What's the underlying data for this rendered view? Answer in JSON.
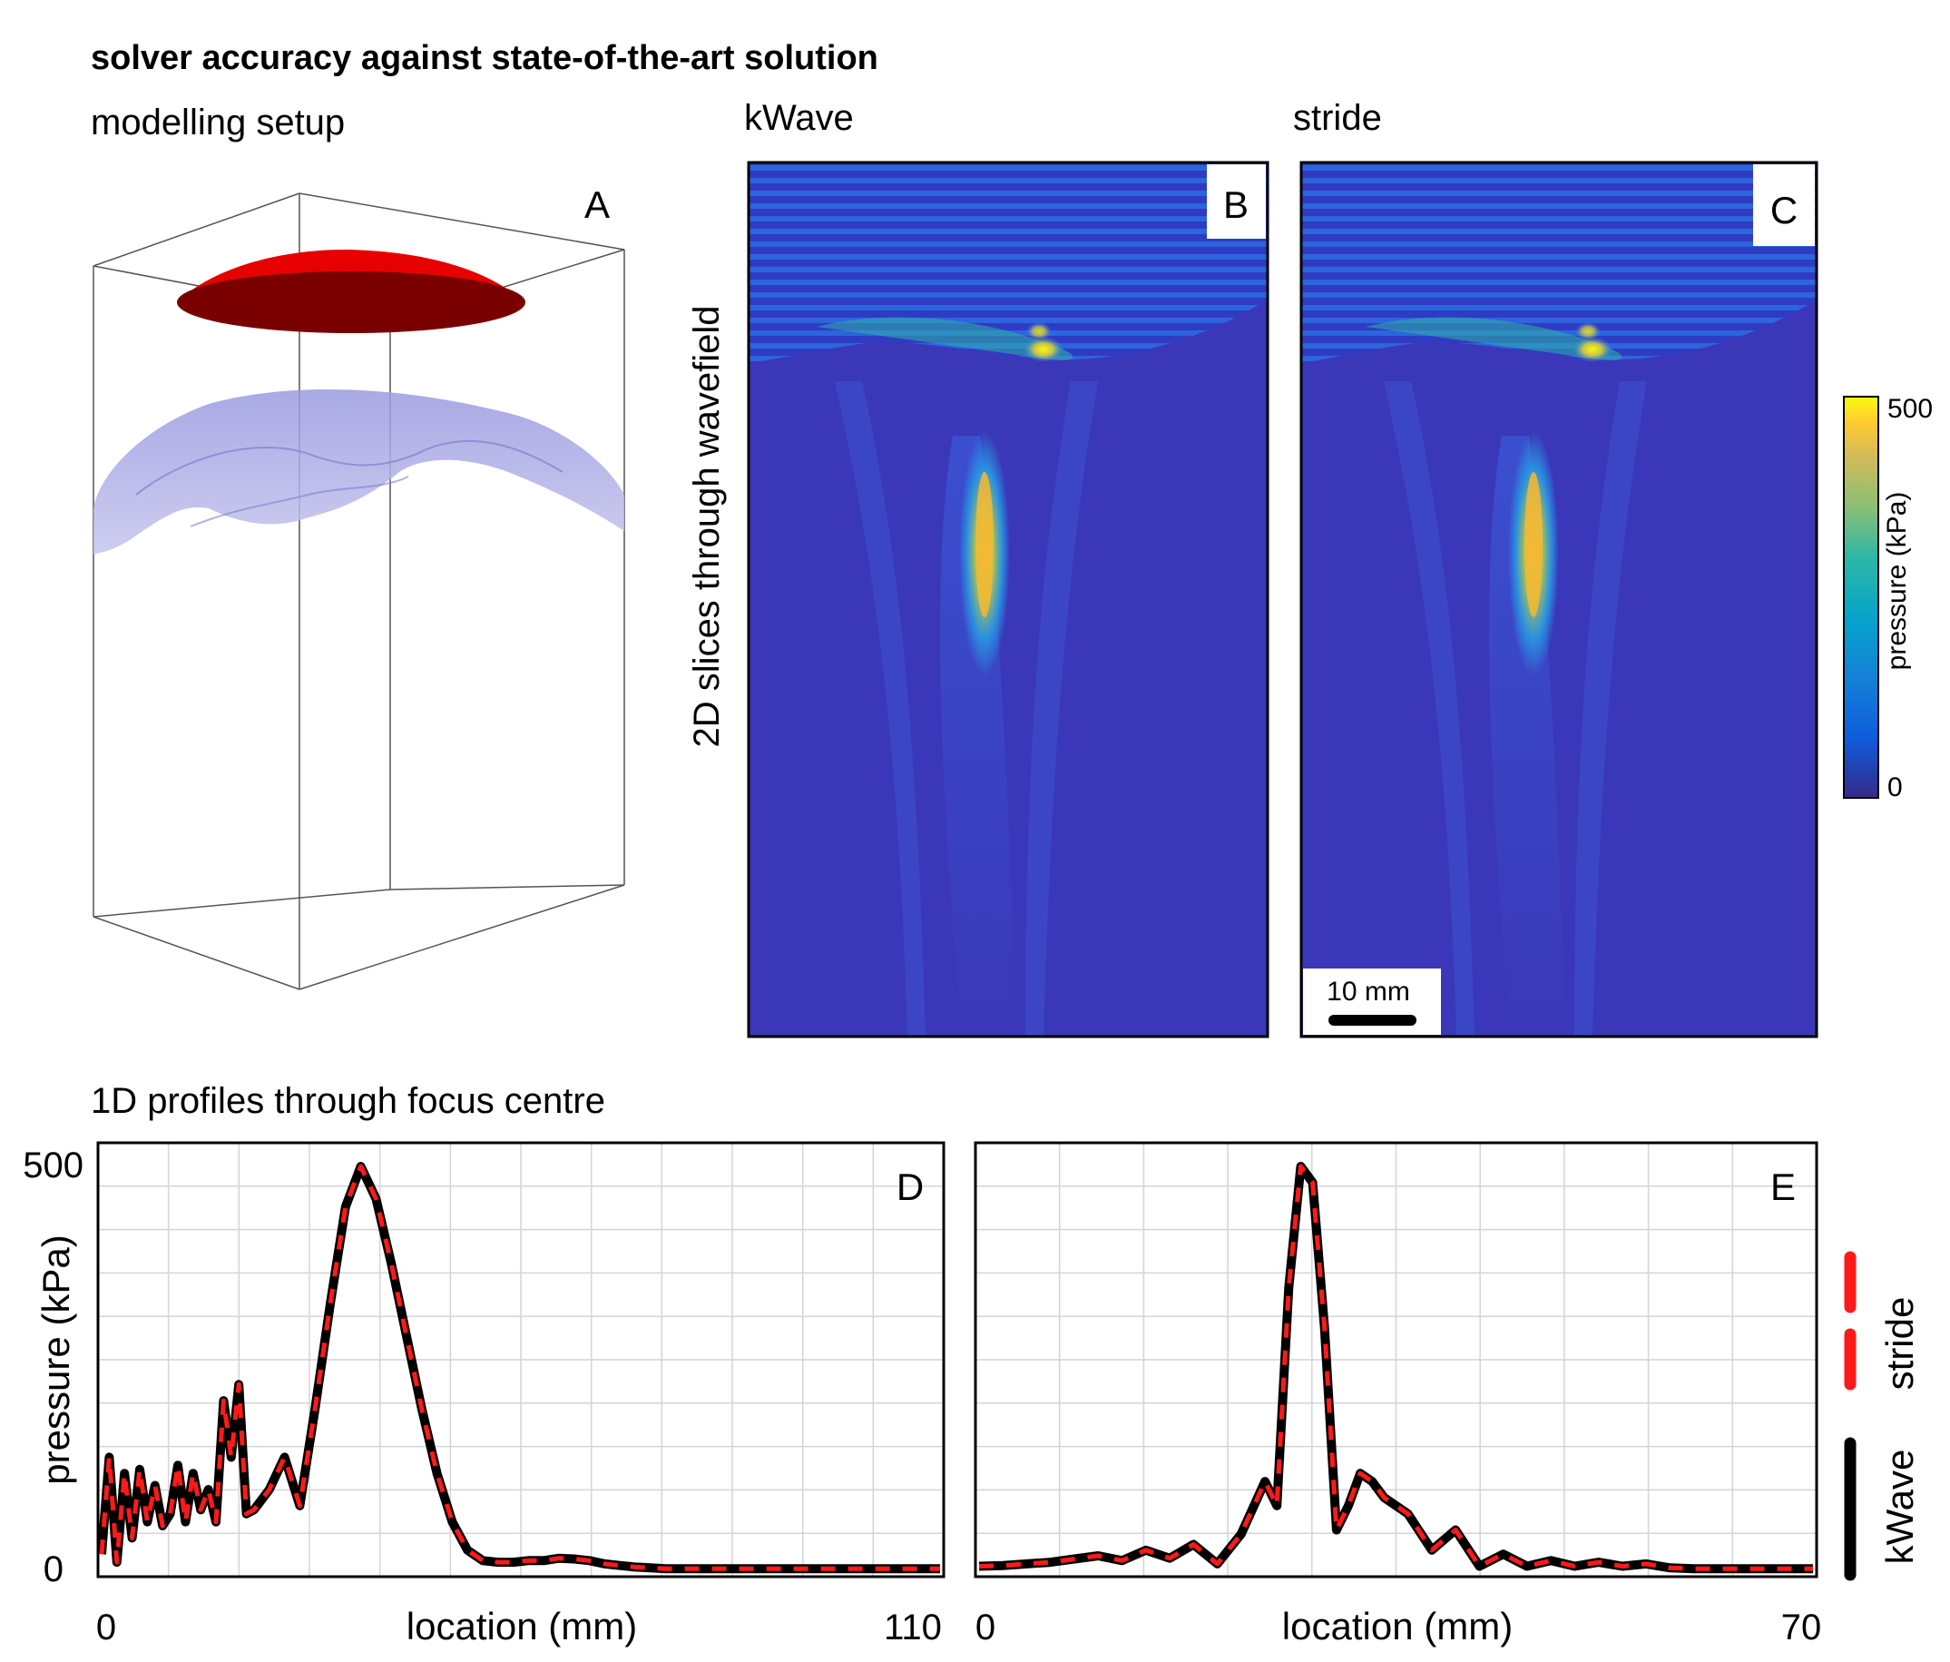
{
  "title": "solver accuracy against state-of-the-art solution",
  "sections": {
    "setup": "modelling setup",
    "slices_ylabel": "2D slices through wavefield",
    "profiles": "1D profiles through focus centre"
  },
  "panels": {
    "A": {
      "letter": "A"
    },
    "B": {
      "letter": "B",
      "header": "kWave"
    },
    "C": {
      "letter": "C",
      "header": "stride"
    },
    "D": {
      "letter": "D"
    },
    "E": {
      "letter": "E"
    }
  },
  "scale_bar": {
    "label": "10 mm"
  },
  "colorbar": {
    "label": "pressure (kPa)",
    "max_label": "500",
    "min_label": "0",
    "min": 0,
    "max": 500
  },
  "legend": {
    "items": [
      {
        "name": "stride",
        "color": "#ff1a1a",
        "style": "dashed"
      },
      {
        "name": "kWave",
        "color": "#000000",
        "style": "solid"
      }
    ]
  },
  "colors": {
    "transducer": "#cc0000",
    "skull": "#8888dd",
    "kwave": "#000000",
    "stride": "#ff1a1a"
  },
  "chart_data": [
    {
      "id": "D",
      "type": "line",
      "xlabel": "location (mm)",
      "ylabel": "pressure (kPa)",
      "xlim": [
        0,
        110
      ],
      "ylim": [
        0,
        500
      ],
      "x_tick_labels": [
        "0",
        "110"
      ],
      "y_tick_labels": [
        "500",
        "0"
      ],
      "grid": true,
      "series": [
        {
          "name": "kWave",
          "x": [
            0,
            1,
            2,
            3,
            4,
            5,
            6,
            7,
            8,
            9,
            10,
            11,
            12,
            13,
            14,
            15,
            16,
            17,
            18,
            19,
            20,
            22,
            24,
            26,
            28,
            30,
            32,
            34,
            36,
            38,
            40,
            42,
            44,
            46,
            48,
            50,
            52,
            54,
            56,
            58,
            60,
            62,
            64,
            66,
            68,
            70,
            72,
            74,
            76,
            78,
            80,
            84,
            88,
            92,
            96,
            100,
            104,
            110
          ],
          "y": [
            20,
            140,
            10,
            120,
            40,
            125,
            60,
            105,
            55,
            70,
            130,
            60,
            120,
            75,
            100,
            60,
            210,
            140,
            230,
            70,
            75,
            100,
            140,
            80,
            200,
            330,
            450,
            500,
            460,
            380,
            290,
            200,
            120,
            60,
            25,
            12,
            10,
            10,
            12,
            12,
            15,
            14,
            12,
            8,
            6,
            4,
            3,
            2,
            2,
            2,
            2,
            2,
            2,
            2,
            2,
            2,
            2,
            2
          ]
        },
        {
          "name": "stride",
          "x": [
            0,
            1,
            2,
            3,
            4,
            5,
            6,
            7,
            8,
            9,
            10,
            11,
            12,
            13,
            14,
            15,
            16,
            17,
            18,
            19,
            20,
            22,
            24,
            26,
            28,
            30,
            32,
            34,
            36,
            38,
            40,
            42,
            44,
            46,
            48,
            50,
            52,
            54,
            56,
            58,
            60,
            62,
            64,
            66,
            68,
            70,
            72,
            74,
            76,
            78,
            80,
            84,
            88,
            92,
            96,
            100,
            104,
            110
          ],
          "y": [
            20,
            140,
            10,
            120,
            40,
            125,
            60,
            105,
            55,
            70,
            130,
            60,
            120,
            75,
            100,
            60,
            210,
            140,
            230,
            70,
            75,
            100,
            140,
            80,
            200,
            330,
            450,
            500,
            460,
            380,
            290,
            200,
            120,
            60,
            25,
            12,
            10,
            10,
            12,
            12,
            15,
            14,
            12,
            8,
            6,
            4,
            3,
            2,
            2,
            2,
            2,
            2,
            2,
            2,
            2,
            2,
            2,
            2
          ]
        }
      ]
    },
    {
      "id": "E",
      "type": "line",
      "xlabel": "location (mm)",
      "ylabel": "",
      "xlim": [
        0,
        70
      ],
      "ylim": [
        0,
        500
      ],
      "x_tick_labels": [
        "0",
        "70"
      ],
      "grid": true,
      "series": [
        {
          "name": "kWave",
          "x": [
            0,
            2,
            4,
            6,
            8,
            10,
            12,
            14,
            16,
            18,
            20,
            22,
            24,
            25,
            26,
            27,
            28,
            29,
            30,
            31,
            32,
            33,
            34,
            36,
            38,
            40,
            42,
            44,
            46,
            48,
            50,
            52,
            54,
            56,
            58,
            60,
            62,
            64,
            66,
            68,
            70
          ],
          "y": [
            5,
            6,
            8,
            10,
            14,
            18,
            12,
            25,
            15,
            32,
            8,
            45,
            110,
            80,
            350,
            500,
            480,
            300,
            50,
            80,
            120,
            110,
            90,
            70,
            25,
            50,
            5,
            20,
            5,
            12,
            5,
            10,
            5,
            8,
            3,
            2,
            2,
            2,
            2,
            2,
            2
          ]
        },
        {
          "name": "stride",
          "x": [
            0,
            2,
            4,
            6,
            8,
            10,
            12,
            14,
            16,
            18,
            20,
            22,
            24,
            25,
            26,
            27,
            28,
            29,
            30,
            31,
            32,
            33,
            34,
            36,
            38,
            40,
            42,
            44,
            46,
            48,
            50,
            52,
            54,
            56,
            58,
            60,
            62,
            64,
            66,
            68,
            70
          ],
          "y": [
            5,
            6,
            8,
            10,
            14,
            18,
            12,
            25,
            15,
            32,
            8,
            45,
            110,
            80,
            350,
            500,
            480,
            300,
            50,
            80,
            120,
            110,
            90,
            70,
            25,
            50,
            5,
            20,
            5,
            12,
            5,
            10,
            5,
            8,
            3,
            2,
            2,
            2,
            2,
            2,
            2
          ]
        }
      ]
    }
  ]
}
